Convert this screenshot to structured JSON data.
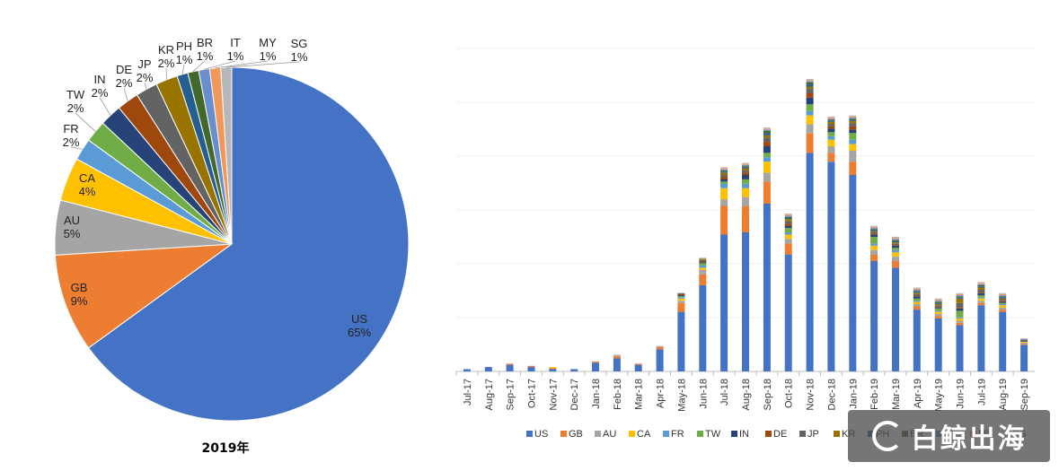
{
  "colors": {
    "US": "#4472C4",
    "GB": "#ED7D31",
    "AU": "#A5A5A5",
    "CA": "#FFC000",
    "FR": "#5B9BD5",
    "TW": "#70AD47",
    "IN": "#264478",
    "DE": "#9E480E",
    "JP": "#636363",
    "KR": "#997300",
    "PH": "#255E91",
    "BR": "#43682B",
    "IT": "#698ED0",
    "MY": "#F1975A",
    "SG": "#B7B7B7"
  },
  "watermark": {
    "text": "白鲸出海"
  },
  "chart_data": [
    {
      "type": "pie",
      "title": "2019年",
      "categories": [
        "US",
        "GB",
        "AU",
        "CA",
        "FR",
        "TW",
        "IN",
        "DE",
        "JP",
        "KR",
        "PH",
        "BR",
        "IT",
        "MY",
        "SG"
      ],
      "values": [
        65,
        9,
        5,
        4,
        2,
        2,
        2,
        2,
        2,
        2,
        1,
        1,
        1,
        1,
        1
      ],
      "labels": [
        "65%",
        "9%",
        "5%",
        "4%",
        "2%",
        "2%",
        "2%",
        "2%",
        "2%",
        "2%",
        "1%",
        "1%",
        "1%",
        "1%",
        "1%"
      ]
    },
    {
      "type": "bar",
      "stacked": true,
      "title": "",
      "xlabel": "",
      "ylabel": "",
      "grid": true,
      "legend": "bottom",
      "categories": [
        "Jul-17",
        "Aug-17",
        "Sep-17",
        "Oct-17",
        "Nov-17",
        "Dec-17",
        "Jan-18",
        "Feb-18",
        "Mar-18",
        "Apr-18",
        "May-18",
        "Jun-18",
        "Jul-18",
        "Aug-18",
        "Sep-18",
        "Oct-18",
        "Nov-18",
        "Dec-18",
        "Jan-19",
        "Feb-19",
        "Mar-19",
        "Apr-19",
        "May-19",
        "Jun-19",
        "Jul-19",
        "Aug-19",
        "Sep-19"
      ],
      "series": [
        {
          "name": "US",
          "values": [
            1,
            2,
            3,
            2,
            1,
            1,
            4,
            6,
            3,
            10,
            27,
            39,
            62,
            63,
            76,
            53,
            99,
            95,
            89,
            50,
            47,
            28,
            24,
            21,
            30,
            27,
            12
          ]
        },
        {
          "name": "GB",
          "values": [
            0,
            0,
            0.5,
            0.5,
            0.5,
            0,
            0.5,
            1,
            0.5,
            1,
            4,
            5,
            13,
            12,
            10,
            5,
            9,
            4,
            6,
            3,
            3,
            1.5,
            1,
            1,
            1,
            1,
            0.5
          ]
        },
        {
          "name": "AU",
          "values": [
            0,
            0,
            0,
            0,
            0,
            0,
            0,
            0.5,
            0,
            0.5,
            1,
            2,
            3,
            4,
            4,
            2,
            4,
            3,
            5,
            2,
            2,
            1,
            1,
            1,
            1,
            1,
            0.5
          ]
        },
        {
          "name": "CA",
          "values": [
            0,
            0,
            0,
            0,
            0.5,
            0,
            0,
            0,
            0,
            0,
            1,
            1,
            5,
            4,
            5,
            2,
            4,
            3,
            3,
            2,
            2,
            1,
            1,
            1,
            1,
            1,
            0.5
          ]
        },
        {
          "name": "FR",
          "values": [
            0,
            0,
            0,
            0,
            0,
            0,
            0,
            0,
            0,
            0,
            0.5,
            1,
            2,
            2,
            2,
            1,
            2,
            1.5,
            2,
            1,
            1,
            0.5,
            0.5,
            0.5,
            0.5,
            0.5,
            0
          ]
        },
        {
          "name": "TW",
          "values": [
            0,
            0,
            0,
            0,
            0,
            0,
            0,
            0,
            0,
            0,
            0.5,
            1,
            1,
            2,
            2,
            2,
            3,
            2,
            3,
            3,
            1,
            1,
            1,
            3,
            1,
            0.5,
            0
          ]
        },
        {
          "name": "IN",
          "values": [
            0,
            0,
            0,
            0,
            0,
            0,
            0,
            0,
            0,
            0,
            0.5,
            0.5,
            1,
            2,
            3,
            1,
            3,
            1.5,
            1.5,
            1,
            1,
            1,
            0.5,
            1,
            1,
            0.5,
            0.5
          ]
        },
        {
          "name": "DE",
          "values": [
            0,
            0,
            0,
            0,
            0,
            0,
            0,
            0,
            0,
            0,
            0.5,
            0.5,
            1,
            1,
            2,
            1,
            2,
            1,
            1.5,
            0.5,
            0.5,
            0.5,
            0.5,
            0.5,
            0.5,
            0.5,
            0
          ]
        },
        {
          "name": "JP",
          "values": [
            0,
            0,
            0,
            0,
            0,
            0,
            0,
            0,
            0,
            0,
            0.5,
            0.5,
            1,
            1,
            2,
            1,
            2,
            1,
            1.5,
            0.5,
            0.5,
            0.5,
            0.5,
            2,
            1,
            0.5,
            0.5
          ]
        },
        {
          "name": "KR",
          "values": [
            0,
            0,
            0,
            0,
            0,
            0,
            0,
            0,
            0,
            0,
            0,
            0.5,
            1,
            1,
            1,
            1,
            1,
            1,
            1,
            0.5,
            0.5,
            0.5,
            0.5,
            2,
            1,
            0.5,
            0
          ]
        },
        {
          "name": "PH",
          "values": [
            0,
            0,
            0,
            0,
            0,
            0,
            0,
            0,
            0,
            0,
            0,
            0,
            0.5,
            0.5,
            1,
            0.5,
            1,
            0.5,
            0.5,
            0.5,
            0.5,
            0.5,
            0.5,
            0.5,
            0.5,
            0.5,
            0
          ]
        },
        {
          "name": "BR",
          "values": [
            0,
            0,
            0,
            0,
            0,
            0,
            0,
            0,
            0,
            0,
            0,
            0,
            0.5,
            0.5,
            1,
            0.5,
            1,
            0.5,
            0.5,
            0.5,
            0.5,
            0.5,
            0.5,
            0.5,
            0.5,
            0.5,
            0
          ]
        },
        {
          "name": "IT",
          "values": [
            0,
            0,
            0,
            0,
            0,
            0,
            0,
            0,
            0,
            0,
            0,
            0,
            0.5,
            0.5,
            0.5,
            0.5,
            0.5,
            0.5,
            0.5,
            0.5,
            0.5,
            0.5,
            0.5,
            0.5,
            0.5,
            0.5,
            0
          ]
        },
        {
          "name": "MY",
          "values": [
            0,
            0,
            0,
            0,
            0,
            0,
            0,
            0,
            0,
            0,
            0,
            0,
            0.5,
            0.5,
            0.5,
            0.5,
            0.5,
            0.5,
            0.5,
            0.5,
            0.5,
            0.5,
            0.5,
            0.5,
            0.5,
            0.5,
            0
          ]
        },
        {
          "name": "SG",
          "values": [
            0,
            0,
            0,
            0,
            0,
            0,
            0,
            0,
            0,
            0,
            0,
            0.5,
            0.5,
            0.5,
            0.5,
            0.5,
            0.5,
            0.5,
            0.5,
            0.5,
            0.5,
            0.5,
            0.5,
            0.5,
            0.5,
            0.5,
            0.5
          ]
        }
      ]
    }
  ]
}
